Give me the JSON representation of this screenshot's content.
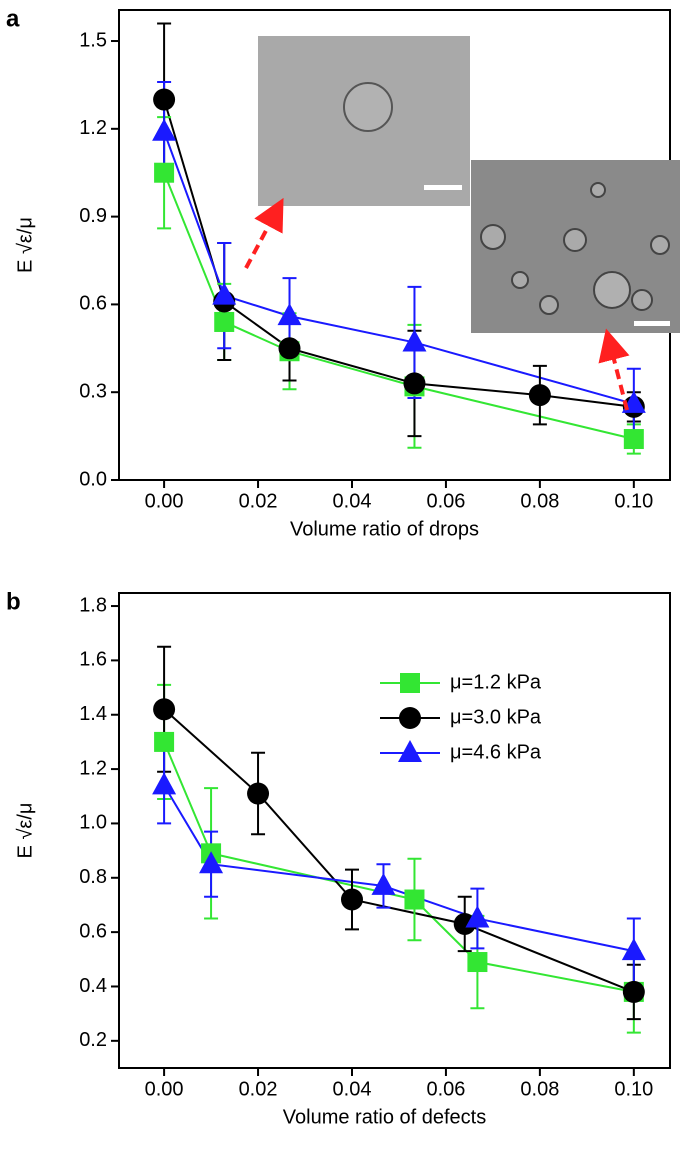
{
  "chart_data": [
    {
      "type": "line",
      "label": "a",
      "xlabel": "Volume ratio of drops",
      "ylabel": "E √ε/μ",
      "xlim": [
        -0.0096,
        0.1077
      ],
      "ylim": [
        0,
        1.606
      ],
      "xticks": [
        {
          "value": 0,
          "label": "0.00"
        },
        0.02,
        0.04,
        0.06,
        0.08,
        {
          "value": 0.1,
          "label": "0.10"
        }
      ],
      "yticks": [
        {
          "value": 0,
          "label": "0.0"
        },
        0.3,
        0.6,
        0.9,
        1.2,
        1.5
      ],
      "series": [
        {
          "name": "μ=1.2 kPa",
          "color": "#33e633",
          "marker": "square",
          "x": [
            0,
            0.0128,
            0.0267,
            0.0533,
            0.1
          ],
          "values": [
            1.05,
            0.54,
            0.44,
            0.32,
            0.14
          ],
          "errors": [
            0.19,
            0.13,
            0.13,
            0.21,
            0.05
          ]
        },
        {
          "name": "μ=3.0 kPa",
          "color": "#000000",
          "marker": "circle",
          "x": [
            0,
            0.0128,
            0.0267,
            0.0533,
            0.08,
            0.1
          ],
          "values": [
            1.3,
            0.61,
            0.45,
            0.33,
            0.29,
            0.25
          ],
          "errors": [
            0.26,
            0.2,
            0.11,
            0.18,
            0.1,
            0.05
          ]
        },
        {
          "name": "μ=4.6 kPa",
          "color": "#1a1aff",
          "marker": "triangle",
          "x": [
            0,
            0.0128,
            0.0267,
            0.0533,
            0.1
          ],
          "values": [
            1.19,
            0.63,
            0.56,
            0.47,
            0.26
          ],
          "errors": [
            0.17,
            0.18,
            0.13,
            0.19,
            0.12
          ]
        }
      ]
    },
    {
      "type": "line",
      "label": "b",
      "xlabel": "Volume ratio of defects",
      "ylabel": "E √ε/μ",
      "xlim": [
        -0.0096,
        0.1077
      ],
      "ylim": [
        0.1,
        1.848
      ],
      "legend": "upper right",
      "xticks": [
        {
          "value": 0,
          "label": "0.00"
        },
        0.02,
        0.04,
        0.06,
        0.08,
        {
          "value": 0.1,
          "label": "0.10"
        }
      ],
      "yticks": [
        0.2,
        0.4,
        0.6,
        0.8,
        {
          "value": 1,
          "label": "1.0"
        },
        1.2,
        1.4,
        1.6,
        1.8
      ],
      "series": [
        {
          "name": "μ=1.2 kPa",
          "color": "#33e633",
          "marker": "square",
          "x": [
            0,
            0.01,
            0.0533,
            0.0667,
            0.1
          ],
          "values": [
            1.3,
            0.89,
            0.72,
            0.49,
            0.38
          ],
          "errors": [
            0.21,
            0.24,
            0.15,
            0.17,
            0.15
          ]
        },
        {
          "name": "μ=3.0 kPa",
          "color": "#000000",
          "marker": "circle",
          "x": [
            0,
            0.02,
            0.04,
            0.064,
            0.1
          ],
          "values": [
            1.42,
            1.11,
            0.72,
            0.63,
            0.38
          ],
          "errors": [
            0.23,
            0.15,
            0.11,
            0.1,
            0.1
          ]
        },
        {
          "name": "μ=4.6 kPa",
          "color": "#1a1aff",
          "marker": "triangle",
          "x": [
            0,
            0.01,
            0.0467,
            0.0667,
            0.1
          ],
          "values": [
            1.14,
            0.85,
            0.77,
            0.65,
            0.53
          ],
          "errors": [
            0.14,
            0.12,
            0.08,
            0.11,
            0.12
          ]
        }
      ]
    }
  ]
}
